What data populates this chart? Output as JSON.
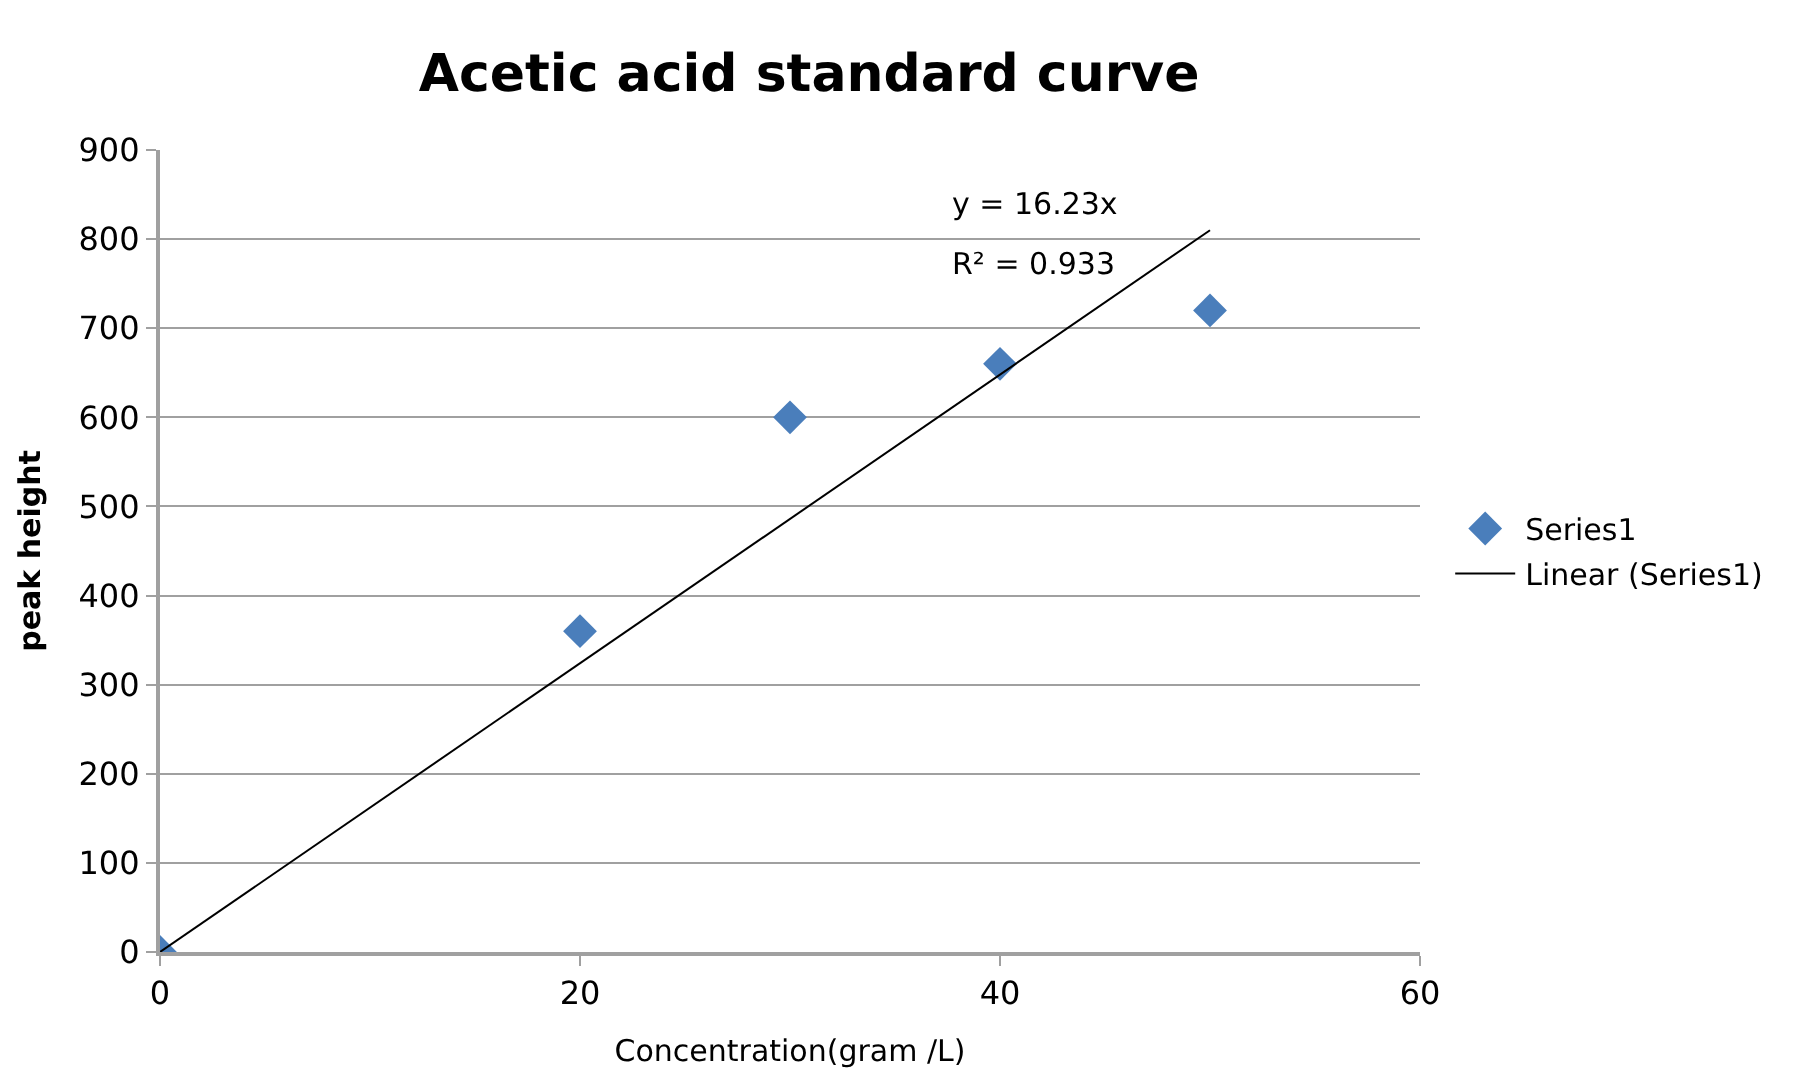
{
  "chart_data": {
    "type": "scatter",
    "title": "Acetic acid standard curve",
    "xlabel": "Concentration(gram /L)",
    "ylabel": "peak height",
    "x": [
      0,
      20,
      30,
      40,
      50
    ],
    "series": [
      {
        "name": "Series1",
        "color": "#4a7ebb",
        "values": [
          0,
          360,
          600,
          660,
          720
        ],
        "marker": "diamond"
      },
      {
        "name": "Linear (Series1)",
        "type": "line",
        "color": "#000000",
        "x": [
          0,
          50
        ],
        "values": [
          0,
          810
        ],
        "marker": "none"
      }
    ],
    "annotations": [
      "y = 16.23x",
      "R² = 0.933"
    ],
    "xlim": [
      0,
      60
    ],
    "xticks": [
      0,
      20,
      40,
      60
    ],
    "ylim": [
      0,
      900
    ],
    "yticks": [
      0,
      100,
      200,
      300,
      400,
      500,
      600,
      700,
      800,
      900
    ],
    "grid": "y",
    "legend": "right"
  }
}
